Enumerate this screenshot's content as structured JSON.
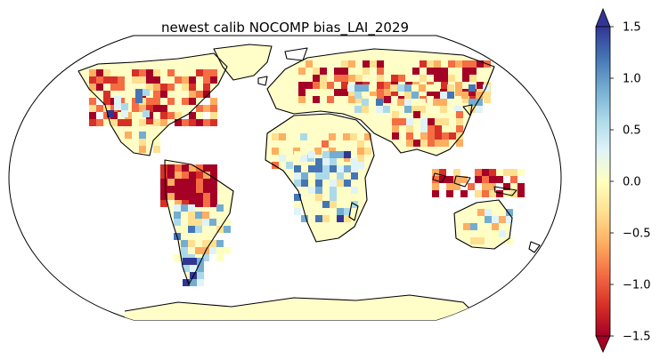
{
  "title": "newest calib NOCOMP bias_LAI_2029",
  "colorbar": {
    "min": -1.5,
    "max": 1.5,
    "extend": "both",
    "colormap": "RdYlBu",
    "ticks": [
      {
        "value": 1.5,
        "label": "1.5"
      },
      {
        "value": 1.0,
        "label": "1.0"
      },
      {
        "value": 0.5,
        "label": "0.5"
      },
      {
        "value": 0.0,
        "label": "0.0"
      },
      {
        "value": -0.5,
        "label": "−0.5"
      },
      {
        "value": -1.0,
        "label": "−1.0"
      },
      {
        "value": -1.5,
        "label": "−1.5"
      }
    ],
    "stops": [
      "#a50026",
      "#d73027",
      "#f46d43",
      "#fdae61",
      "#fee090",
      "#ffffbf",
      "#e0f3f8",
      "#abd9e9",
      "#74add1",
      "#4575b4",
      "#313695"
    ]
  },
  "map": {
    "projection": "Robinson",
    "colors": {
      "ocean": "#ffffff",
      "coast": "#000000",
      "nodata": "#ffffff"
    }
  }
}
